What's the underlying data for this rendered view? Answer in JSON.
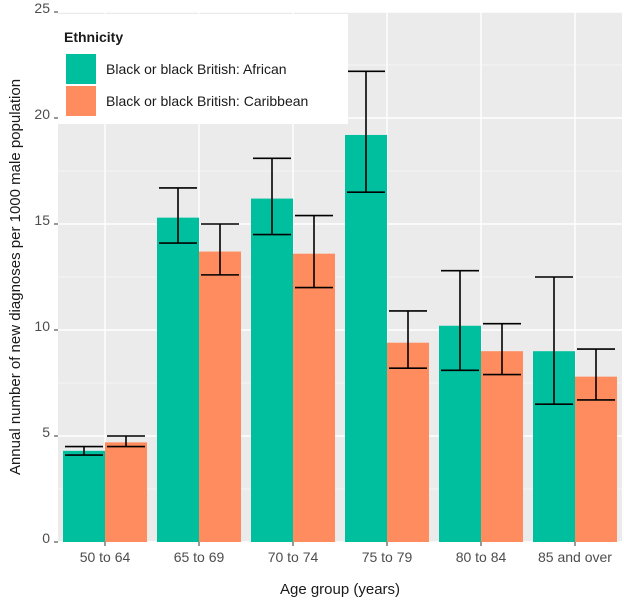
{
  "chart_data": {
    "type": "bar",
    "xlabel": "Age group (years)",
    "ylabel": "Annual number of new diagnoses per 1000 male population",
    "ylim": [
      0,
      25
    ],
    "yticks": [
      0,
      5,
      10,
      15,
      20,
      25
    ],
    "categories": [
      "50 to 64",
      "65 to 69",
      "70 to 74",
      "75 to 79",
      "80 to 84",
      "85 and over"
    ],
    "grid": true,
    "legend": {
      "title": "Ethnicity",
      "placement": "top-left"
    },
    "series": [
      {
        "name": "Black or black British: African",
        "color": "#00bf9f",
        "values": [
          4.3,
          15.3,
          16.2,
          19.2,
          10.2,
          9.0
        ],
        "lower": [
          4.1,
          14.1,
          14.5,
          16.5,
          8.1,
          6.5
        ],
        "upper": [
          4.5,
          16.7,
          18.1,
          22.2,
          12.8,
          12.5
        ]
      },
      {
        "name": "Black or black British: Caribbean",
        "color": "#ff8c5f",
        "values": [
          4.7,
          13.7,
          13.6,
          9.4,
          9.0,
          7.8
        ],
        "lower": [
          4.5,
          12.6,
          12.0,
          8.2,
          7.9,
          6.7
        ],
        "upper": [
          5.0,
          15.0,
          15.4,
          10.9,
          10.3,
          9.1
        ]
      }
    ]
  }
}
